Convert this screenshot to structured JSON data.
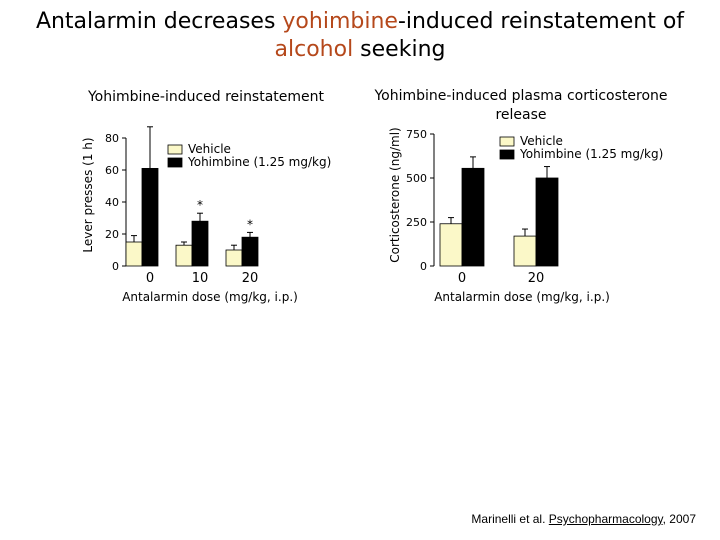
{
  "title": {
    "part1": "Antalarmin decreases ",
    "highlight1": "yohimbine",
    "part2": "-induced reinstatement of",
    "highlight2": "alcohol",
    "part3": " seeking"
  },
  "citation": {
    "authors": "Marinelli et al. ",
    "journal": "Psychopharmacology",
    "year": ", 2007"
  },
  "colors": {
    "vehicle": "#fbf8c8",
    "yohimbine": "#000000",
    "highlight": "#b5481b"
  },
  "chart_data": [
    {
      "type": "bar",
      "title": "Yohimbine-induced reinstatement",
      "ylabel": "Lever presses (1 h)",
      "xlabel": "Antalarmin dose (mg/kg, i.p.)",
      "categories": [
        "0",
        "10",
        "20"
      ],
      "ylim": [
        0,
        80
      ],
      "yticks": [
        "0",
        "20",
        "40",
        "60",
        "80"
      ],
      "legend_position": "top-right",
      "series": [
        {
          "name": "Vehicle",
          "values": [
            15,
            13,
            10
          ],
          "errors": [
            4,
            2,
            3
          ]
        },
        {
          "name": "Yohimbine (1.25 mg/kg)",
          "values": [
            61,
            28,
            18
          ],
          "errors": [
            26,
            5,
            3
          ]
        }
      ],
      "annotations": [
        "*",
        "*"
      ]
    },
    {
      "type": "bar",
      "title": "Yohimbine-induced plasma corticosterone release",
      "ylabel": "Corticosterone (ng/ml)",
      "xlabel": "Antalarmin dose (mg/kg, i.p.)",
      "categories": [
        "0",
        "20"
      ],
      "ylim": [
        0,
        750
      ],
      "yticks": [
        "0",
        "250",
        "500",
        "750"
      ],
      "legend_position": "top-right",
      "series": [
        {
          "name": "Vehicle",
          "values": [
            240,
            170
          ],
          "errors": [
            35,
            40
          ]
        },
        {
          "name": "Yohimbine (1.25 mg/kg)",
          "values": [
            555,
            500
          ],
          "errors": [
            65,
            65
          ]
        }
      ]
    }
  ]
}
